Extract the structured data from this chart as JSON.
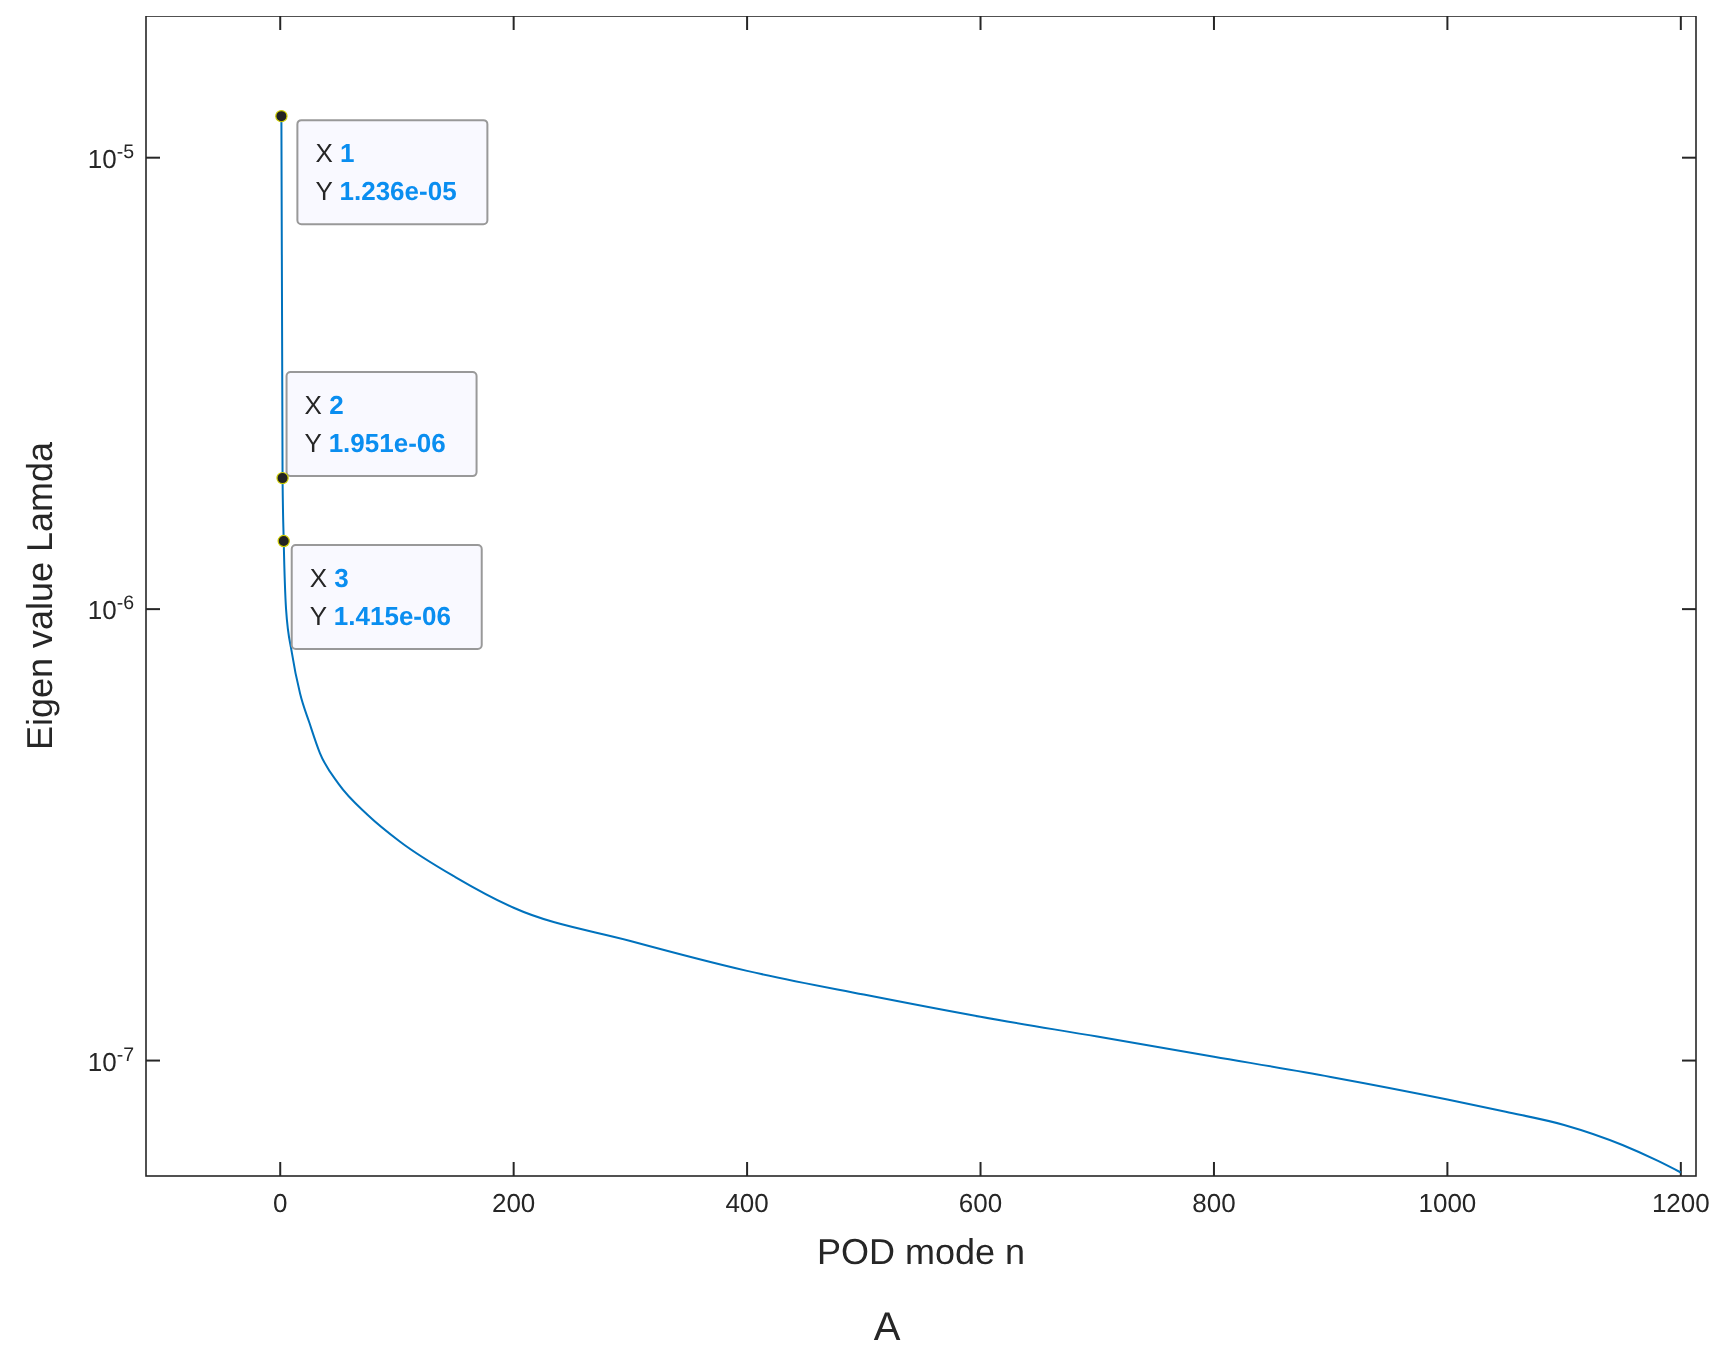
{
  "chart_data": {
    "type": "line",
    "xlabel": "POD mode n",
    "ylabel": "Eigen value Lamda",
    "log": "y",
    "xlim": [
      -115,
      1213
    ],
    "ylim": [
      5.55e-08,
      2.06e-05
    ],
    "xticks": [
      0,
      200,
      400,
      600,
      800,
      1000,
      1200
    ],
    "yticks": [
      {
        "value": 1e-07,
        "label": "10$^{-7}$"
      },
      {
        "value": 1e-06,
        "label": "10$^{-6}$"
      },
      {
        "value": 1e-05,
        "label": "10$^{-5}$"
      }
    ],
    "grid": false,
    "marker": "none",
    "line_style": "solid",
    "series": [
      {
        "color": "#0072bd",
        "x": [
          1,
          2,
          3,
          5,
          10,
          17,
          25,
          34,
          50,
          75,
          103,
          150,
          200,
          300,
          400,
          500,
          600,
          700,
          800,
          900,
          1000,
          1050,
          1100,
          1150,
          1180,
          1200
        ],
        "values": [
          1.236e-05,
          1.951e-06,
          1.415e-06,
          1e-06,
          8e-07,
          6.5e-07,
          5.6e-07,
          4.8e-07,
          4.1e-07,
          3.5e-07,
          3.05e-07,
          2.55e-07,
          2.18e-07,
          1.84e-07,
          1.58e-07,
          1.4e-07,
          1.25e-07,
          1.13e-07,
          1.02e-07,
          9.2e-08,
          8.2e-08,
          7.7e-08,
          7.2e-08,
          6.5e-08,
          6e-08,
          5.65e-08
        ]
      }
    ],
    "annotations": [
      {
        "text": "X 1\nY 1.236e-05",
        "x": 1,
        "y": 1.236e-05
      },
      {
        "text": "X 2\nY 1.951e-06",
        "x": 2,
        "y": 1.951e-06
      },
      {
        "text": "X 3\nY 1.415e-06",
        "x": 3,
        "y": 1.415e-06
      },
      "A"
    ]
  }
}
